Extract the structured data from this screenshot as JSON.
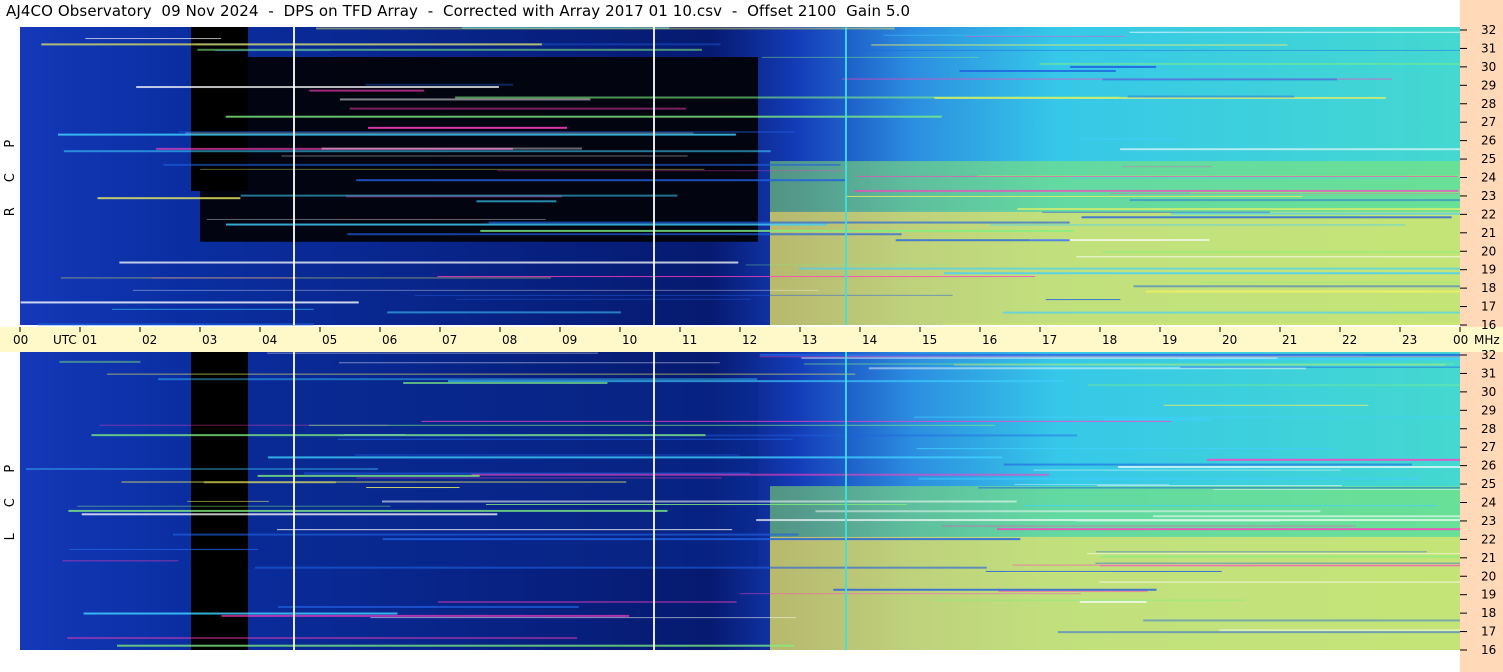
{
  "header": {
    "title": "AJ4CO Observatory  09 Nov 2024  -  DPS on TFD Array  -  Corrected with Array 2017 01 10.csv  -  Offset 2100  Gain 5.0"
  },
  "chart_data": {
    "type": "heatmap",
    "x_axis": {
      "unit_label": "UTC",
      "range": [
        0,
        24
      ],
      "tick_labels": [
        "00",
        "01",
        "02",
        "03",
        "04",
        "05",
        "06",
        "07",
        "08",
        "09",
        "10",
        "11",
        "12",
        "13",
        "14",
        "15",
        "16",
        "17",
        "18",
        "19",
        "20",
        "21",
        "22",
        "23",
        "00"
      ]
    },
    "y_axis": {
      "unit_label": "MHz",
      "range": [
        16,
        32
      ],
      "tick_labels": [
        "16",
        "17",
        "18",
        "19",
        "20",
        "21",
        "22",
        "23",
        "24",
        "25",
        "26",
        "27",
        "28",
        "29",
        "30",
        "31",
        "32"
      ]
    },
    "panels": [
      {
        "name": "upper",
        "label_letters": [
          "R",
          "C",
          "P"
        ]
      },
      {
        "name": "lower",
        "label_letters": [
          "L",
          "C",
          "P"
        ]
      }
    ],
    "colors": {
      "axis_band": "#fff8c8",
      "right_band": "#ffd9b8",
      "low": "#000000",
      "high": "#ffffff"
    }
  }
}
